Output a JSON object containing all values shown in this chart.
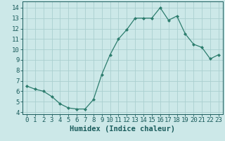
{
  "x": [
    0,
    1,
    2,
    3,
    4,
    5,
    6,
    7,
    8,
    9,
    10,
    11,
    12,
    13,
    14,
    15,
    16,
    17,
    18,
    19,
    20,
    21,
    22,
    23
  ],
  "y": [
    6.5,
    6.2,
    6.0,
    5.5,
    4.8,
    4.4,
    4.3,
    4.3,
    5.2,
    7.6,
    9.5,
    11.0,
    11.9,
    13.0,
    13.0,
    13.0,
    14.0,
    12.8,
    13.2,
    11.5,
    10.5,
    10.2,
    9.1,
    9.5
  ],
  "title": "",
  "xlabel": "Humidex (Indice chaleur)",
  "ylabel": "",
  "xlim": [
    -0.5,
    23.5
  ],
  "ylim": [
    3.8,
    14.6
  ],
  "yticks": [
    4,
    5,
    6,
    7,
    8,
    9,
    10,
    11,
    12,
    13,
    14
  ],
  "xticks": [
    0,
    1,
    2,
    3,
    4,
    5,
    6,
    7,
    8,
    9,
    10,
    11,
    12,
    13,
    14,
    15,
    16,
    17,
    18,
    19,
    20,
    21,
    22,
    23
  ],
  "line_color": "#2d7d6e",
  "marker": "D",
  "marker_size": 2.0,
  "bg_color": "#cce8e8",
  "grid_color": "#aacfcf",
  "font_color": "#1a5c5c",
  "xlabel_fontsize": 7.5,
  "tick_fontsize": 6.5
}
